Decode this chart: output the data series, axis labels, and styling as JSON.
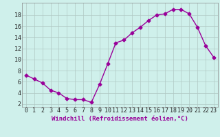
{
  "x": [
    0,
    1,
    2,
    3,
    4,
    5,
    6,
    7,
    8,
    9,
    10,
    11,
    12,
    13,
    14,
    15,
    16,
    17,
    18,
    19,
    20,
    21,
    22,
    23
  ],
  "y": [
    7.2,
    6.5,
    5.8,
    4.5,
    4.0,
    3.0,
    2.8,
    2.8,
    2.3,
    5.5,
    9.2,
    13.0,
    13.5,
    14.8,
    15.8,
    17.0,
    18.0,
    18.2,
    19.0,
    19.0,
    18.2,
    15.8,
    12.5,
    10.4
  ],
  "line_color": "#990099",
  "marker": "D",
  "markersize": 2.5,
  "linewidth": 1.0,
  "bg_color": "#cff0eb",
  "grid_color": "#b0c8c4",
  "xlabel": "Windchill (Refroidissement éolien,°C)",
  "xlabel_color": "#990099",
  "xlabel_fontsize": 6.5,
  "ylabel_ticks": [
    2,
    4,
    6,
    8,
    10,
    12,
    14,
    16,
    18
  ],
  "xlim": [
    -0.5,
    23.5
  ],
  "ylim": [
    1.5,
    20.2
  ],
  "tick_fontsize": 6.0,
  "tick_color": "#222222"
}
